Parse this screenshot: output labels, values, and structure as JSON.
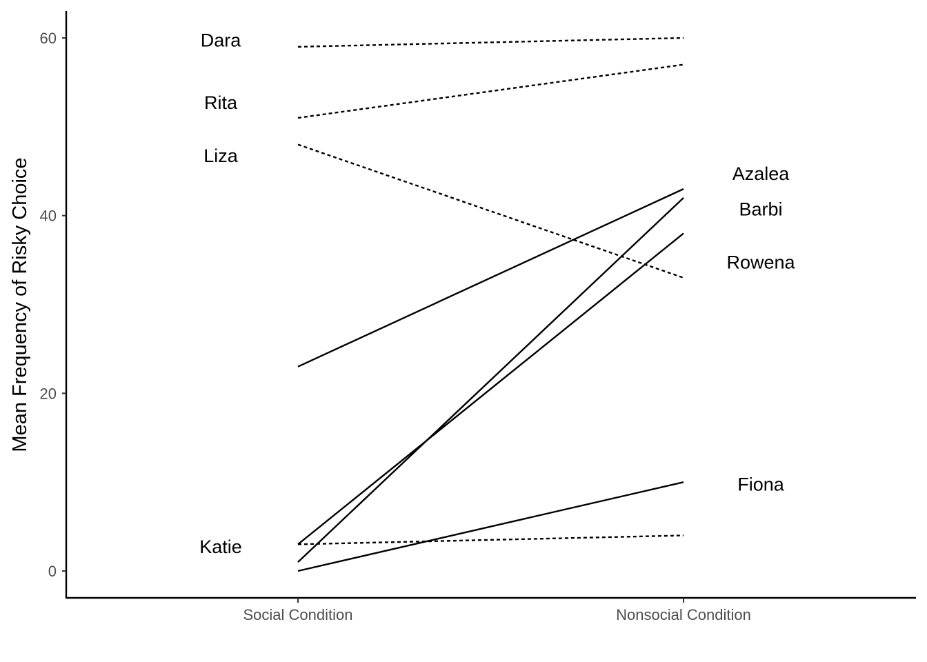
{
  "chart_data": {
    "type": "line",
    "ylabel": "Mean Frequency of Risky Choice",
    "xlabel": "",
    "categories": [
      "Social Condition",
      "Nonsocial Condition"
    ],
    "y_ticks": [
      "0",
      "20",
      "40",
      "60"
    ],
    "y_tick_values": [
      0,
      20,
      40,
      60
    ],
    "ylim": [
      -3,
      63
    ],
    "grid": false,
    "legend": "none",
    "series": [
      {
        "label_social": "Dara",
        "values": [
          59,
          60
        ],
        "linetype": "dotted"
      },
      {
        "label_social": "Rita",
        "values": [
          51,
          57
        ],
        "linetype": "dotted"
      },
      {
        "label_social": "Liza",
        "values": [
          48,
          33
        ],
        "linetype": "dotted"
      },
      {
        "label_social": "Katie",
        "values": [
          3,
          4
        ],
        "linetype": "dotted"
      },
      {
        "label_nonsocial": "Azalea",
        "values": [
          23,
          43
        ],
        "linetype": "solid"
      },
      {
        "label_nonsocial": "Barbi",
        "values": [
          1,
          42
        ],
        "linetype": "solid"
      },
      {
        "label_nonsocial": "Rowena",
        "values": [
          3,
          38
        ],
        "linetype": "solid"
      },
      {
        "label_nonsocial": "Fiona",
        "values": [
          0,
          10
        ],
        "linetype": "solid"
      }
    ],
    "annotations_social": [
      {
        "text": "Dara",
        "y": 59.8
      },
      {
        "text": "Rita",
        "y": 52.8
      },
      {
        "text": "Liza",
        "y": 46.8
      },
      {
        "text": "Katie",
        "y": 2.8
      }
    ],
    "annotations_nonsocial": [
      {
        "text": "Azalea",
        "y": 44.8
      },
      {
        "text": "Barbi",
        "y": 40.8
      },
      {
        "text": "Rowena",
        "y": 34.8
      },
      {
        "text": "Fiona",
        "y": 9.8
      }
    ]
  }
}
